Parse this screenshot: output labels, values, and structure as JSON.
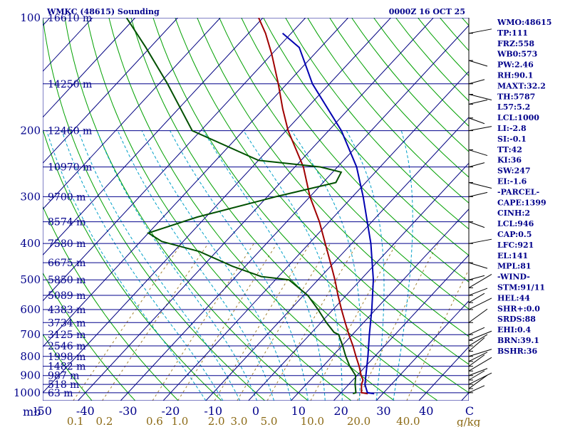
{
  "chart_data": {
    "type": "skew-t",
    "title_left": "WMKC (48615) Sounding",
    "title_right": "0000Z 16 OCT 25",
    "axis_unit_label": "mb",
    "mixing_ratio_unit": "g/kg",
    "pressure_levels": [
      100,
      200,
      300,
      400,
      500,
      600,
      700,
      800,
      900,
      1000
    ],
    "pressure_range": [
      100,
      1050
    ],
    "temperature_range_at_surface": [
      -50,
      50
    ],
    "temperature_ticks": [
      -50,
      -40,
      -30,
      -20,
      -10,
      0,
      10,
      20,
      30,
      40
    ],
    "mixing_ratio_labels": [
      "0.1",
      "0.2",
      "0.6",
      "1.0",
      "2.0",
      "3.0",
      "5.0",
      "10.0",
      "20.0",
      "40.0"
    ],
    "heights": [
      {
        "p": 100,
        "label": "16610 m"
      },
      {
        "p": 150,
        "label": "14250 m"
      },
      {
        "p": 200,
        "label": "12460 m"
      },
      {
        "p": 250,
        "label": "10970 m"
      },
      {
        "p": 300,
        "label": "9700 m"
      },
      {
        "p": 350,
        "label": "8574 m"
      },
      {
        "p": 400,
        "label": "7580 m"
      },
      {
        "p": 450,
        "label": "6675 m"
      },
      {
        "p": 500,
        "label": "5850 m"
      },
      {
        "p": 550,
        "label": "5089 m"
      },
      {
        "p": 600,
        "label": "4383 m"
      },
      {
        "p": 650,
        "label": "3734 m"
      },
      {
        "p": 700,
        "label": "3125 m"
      },
      {
        "p": 750,
        "label": "2546 m"
      },
      {
        "p": 800,
        "label": "1998 m"
      },
      {
        "p": 850,
        "label": "1482 m"
      },
      {
        "p": 900,
        "label": "987 m"
      },
      {
        "p": 950,
        "label": "518 m"
      },
      {
        "p": 1000,
        "label": "63 m"
      }
    ],
    "series": [
      {
        "name": "Temperature",
        "color": "#a00000",
        "points": [
          [
            1006,
            26.5
          ],
          [
            1000,
            24.8
          ],
          [
            950,
            23.0
          ],
          [
            925,
            22.4
          ],
          [
            900,
            21.0
          ],
          [
            850,
            18.5
          ],
          [
            800,
            15.6
          ],
          [
            750,
            12.6
          ],
          [
            700,
            9.2
          ],
          [
            650,
            5.7
          ],
          [
            600,
            2.0
          ],
          [
            550,
            -1.9
          ],
          [
            500,
            -6.0
          ],
          [
            450,
            -10.8
          ],
          [
            400,
            -16.2
          ],
          [
            350,
            -22.3
          ],
          [
            300,
            -30.0
          ],
          [
            250,
            -38.0
          ],
          [
            200,
            -49.5
          ],
          [
            175,
            -55.5
          ],
          [
            150,
            -62.0
          ],
          [
            125,
            -70.0
          ],
          [
            110,
            -76.0
          ],
          [
            100,
            -81.0
          ]
        ]
      },
      {
        "name": "Dewpoint",
        "color": "#005000",
        "points": [
          [
            1006,
            23.0
          ],
          [
            1000,
            23.5
          ],
          [
            950,
            21.5
          ],
          [
            900,
            19.7
          ],
          [
            850,
            16.3
          ],
          [
            800,
            13.2
          ],
          [
            750,
            10.2
          ],
          [
            700,
            6.8
          ],
          [
            690,
            5.2
          ],
          [
            650,
            1.3
          ],
          [
            600,
            -3.5
          ],
          [
            550,
            -9.0
          ],
          [
            500,
            -16.8
          ],
          [
            490,
            -24.0
          ],
          [
            460,
            -33.0
          ],
          [
            420,
            -44.0
          ],
          [
            395,
            -55.0
          ],
          [
            375,
            -60.0
          ],
          [
            340,
            -52.0
          ],
          [
            300,
            -38.0
          ],
          [
            275,
            -27.0
          ],
          [
            258,
            -28.0
          ],
          [
            250,
            -34.0
          ],
          [
            240,
            -50.0
          ],
          [
            200,
            -72.0
          ],
          [
            150,
            -88.0
          ],
          [
            120,
            -101.0
          ],
          [
            100,
            -112.0
          ]
        ]
      },
      {
        "name": "Parcel",
        "color": "#0000b0",
        "points": [
          [
            1006,
            28.0
          ],
          [
            1000,
            26.2
          ],
          [
            950,
            23.8
          ],
          [
            900,
            22.1
          ],
          [
            850,
            20.3
          ],
          [
            800,
            18.4
          ],
          [
            700,
            14.0
          ],
          [
            600,
            9.1
          ],
          [
            500,
            3.0
          ],
          [
            400,
            -5.5
          ],
          [
            300,
            -17.5
          ],
          [
            250,
            -25.5
          ],
          [
            200,
            -37.0
          ],
          [
            150,
            -54.0
          ],
          [
            120,
            -65.0
          ],
          [
            110,
            -72.0
          ]
        ]
      }
    ],
    "stations_info": [
      "WMO:48615",
      "TP:111",
      "FRZ:558",
      "WB0:573",
      "PW:2.46",
      "RH:90.1",
      "MAXT:32.2",
      "TH:5787",
      "L57:5.2",
      "LCL:1000",
      "LI:-2.8",
      "SI:-0.1",
      "TT:42",
      "KI:36",
      "SW:247",
      "EI:-1.6",
      "-PARCEL-",
      "CAPE:1399",
      "CINH:2",
      "LCL:946",
      "CAP:0.5",
      "LFC:921",
      "EL:141",
      "MPL:81",
      "-WIND-",
      "STM:91/11",
      "HEL:44",
      "SHR+:0.0",
      "SRDS:88",
      "EHI:0.4",
      "BRN:39.1",
      "BSHR:36"
    ],
    "colors": {
      "isobar": "#00008b",
      "isotherm": "#000080",
      "dry_adiabat": "#00a000",
      "moist_adiabat": "#00a0c8",
      "mixing_ratio": "#a08030"
    }
  }
}
